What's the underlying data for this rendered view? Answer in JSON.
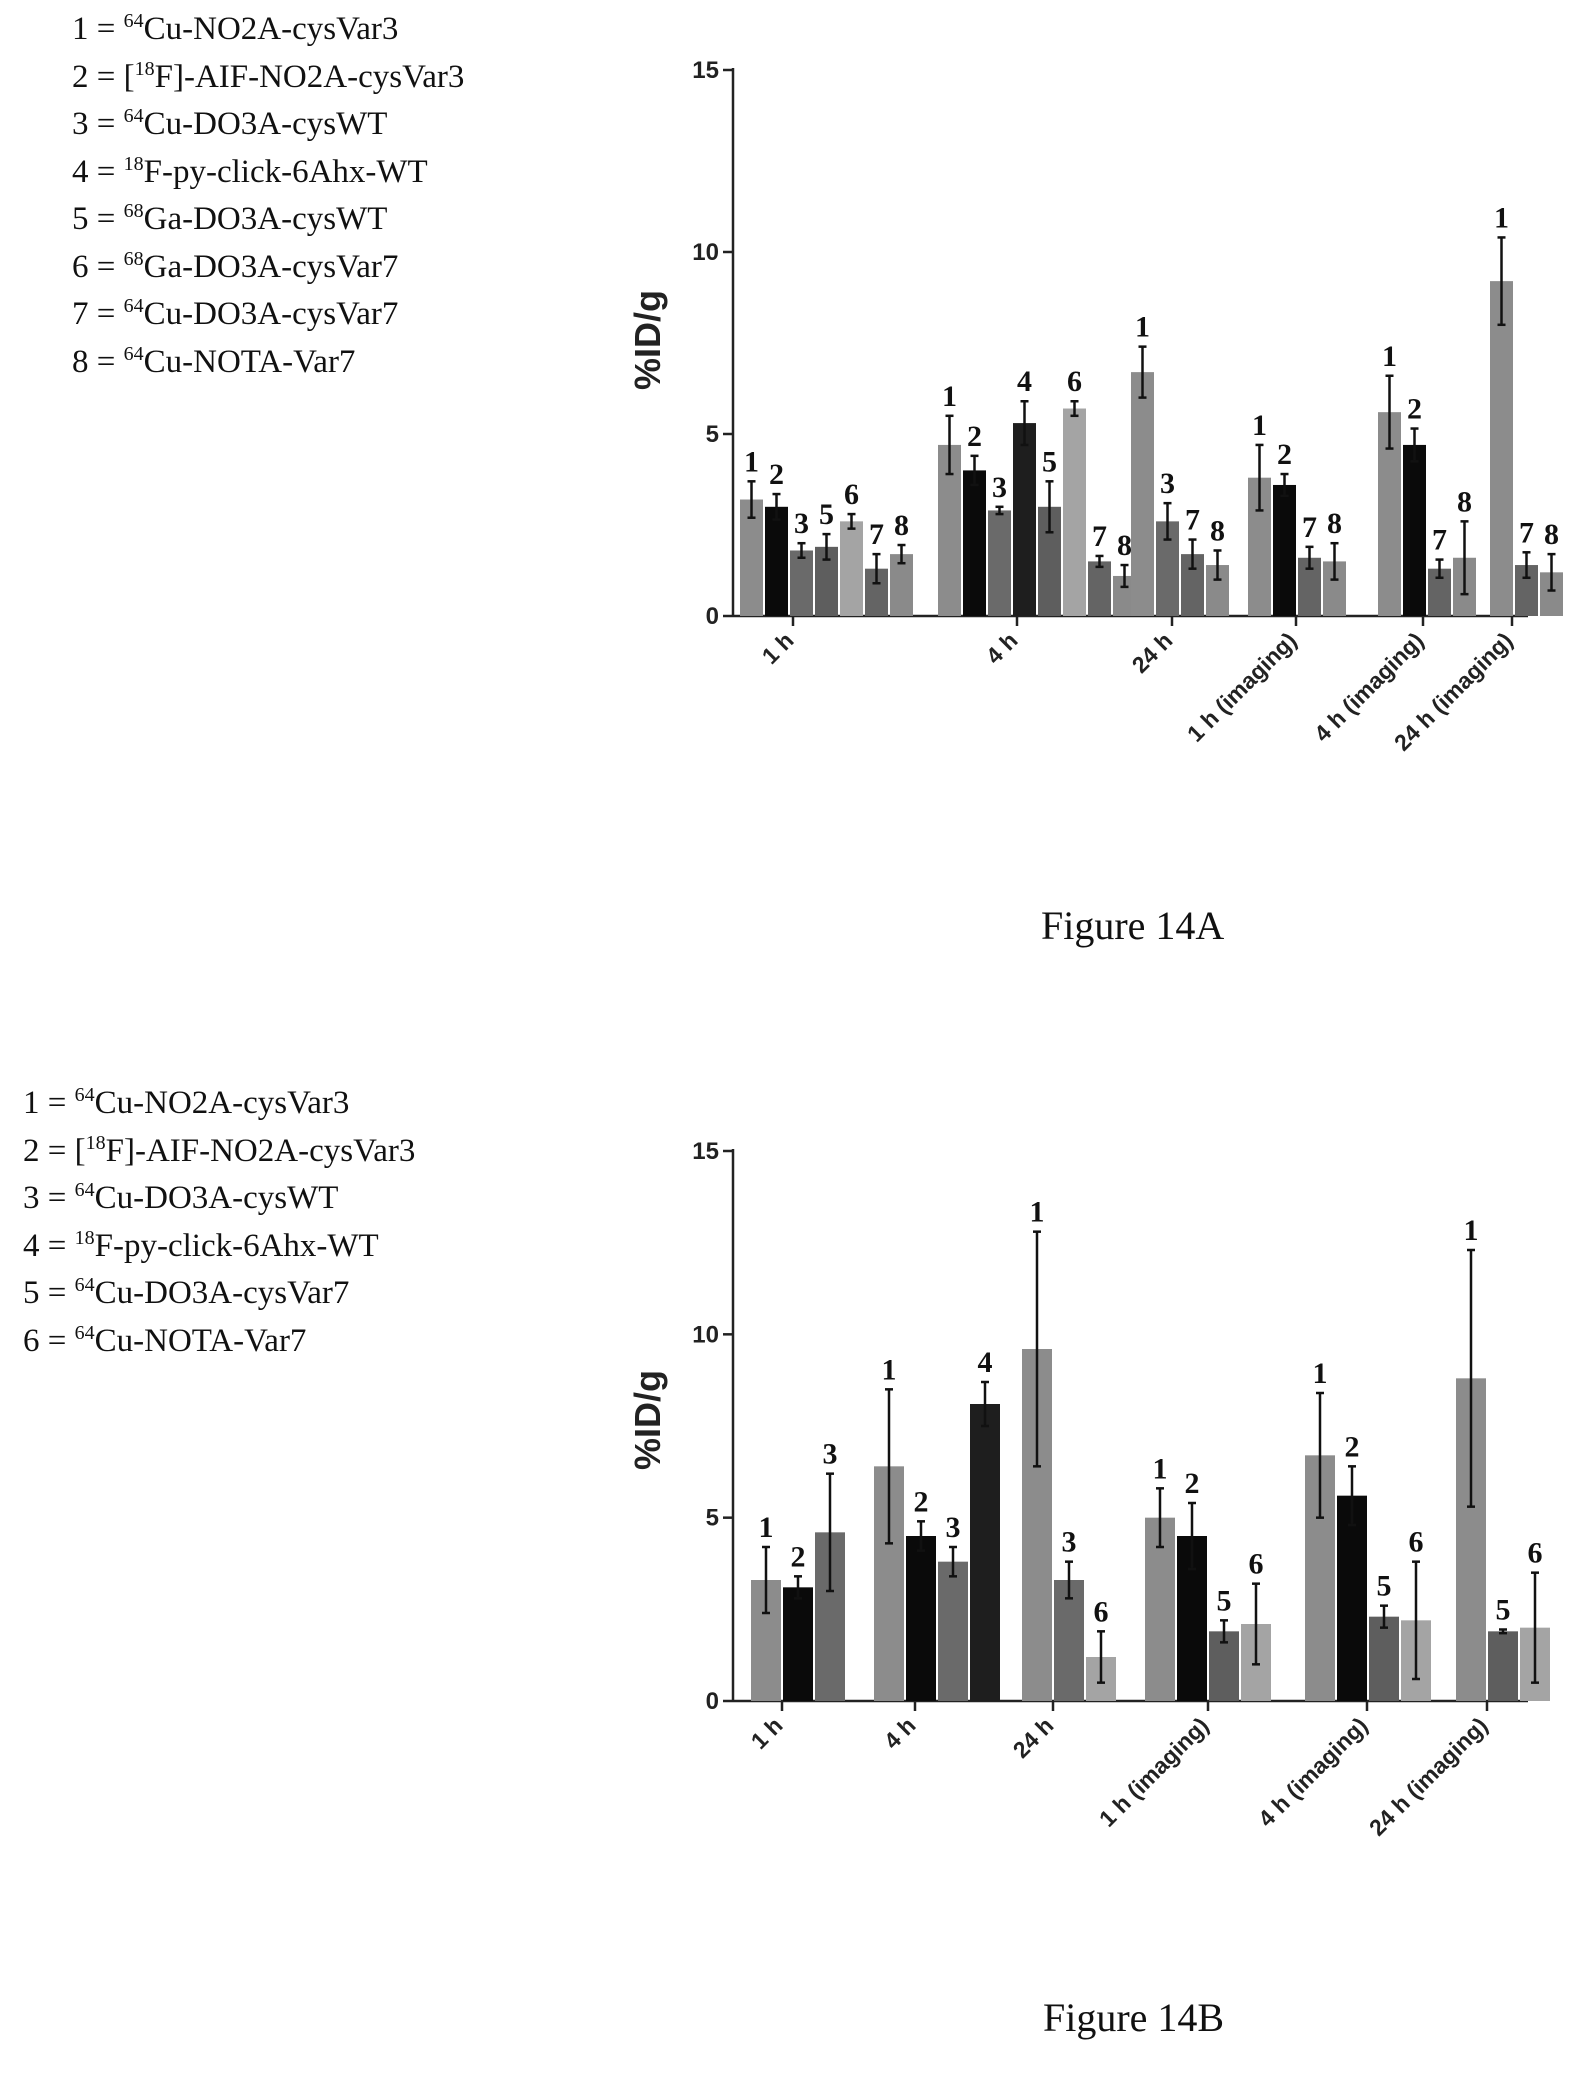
{
  "figures": [
    {
      "caption": "Figure 14A",
      "legend": [
        {
          "num": "1",
          "sup": "64",
          "text": "Cu-NO2A-cysVar3"
        },
        {
          "num": "2",
          "sup": "18",
          "text": "F]-AIF-NO2A-cysVar3",
          "bracket": "["
        },
        {
          "num": "3",
          "sup": "64",
          "text": "Cu-DO3A-cysWT"
        },
        {
          "num": "4",
          "sup": "18",
          "text": "F-py-click-6Ahx-WT"
        },
        {
          "num": "5",
          "sup": "68",
          "text": "Ga-DO3A-cysWT"
        },
        {
          "num": "6",
          "sup": "68",
          "text": "Ga-DO3A-cysVar7"
        },
        {
          "num": "7",
          "sup": "64",
          "text": "Cu-DO3A-cysVar7"
        },
        {
          "num": "8",
          "sup": "64",
          "text": "Cu-NOTA-Var7"
        }
      ]
    },
    {
      "caption": "Figure 14B",
      "legend": [
        {
          "num": "1",
          "sup": "64",
          "text": "Cu-NO2A-cysVar3"
        },
        {
          "num": "2",
          "sup": "18",
          "text": "F]-AIF-NO2A-cysVar3",
          "bracket": "["
        },
        {
          "num": "3",
          "sup": "64",
          "text": "Cu-DO3A-cysWT"
        },
        {
          "num": "4",
          "sup": "18",
          "text": "F-py-click-6Ahx-WT"
        },
        {
          "num": "5",
          "sup": "64",
          "text": "Cu-DO3A-cysVar7"
        },
        {
          "num": "6",
          "sup": "64",
          "text": "Cu-NOTA-Var7"
        }
      ]
    }
  ],
  "series_colors": {
    "1": "#8c8c8c",
    "2": "#0a0a0a",
    "3": "#6a6a6a",
    "4": "#1e1e1e",
    "5": "#5e5e5e",
    "6": "#a4a4a4",
    "7": "#646464",
    "8": "#8a8a8a"
  },
  "chart_data": [
    {
      "type": "bar",
      "ylabel": "%ID/g",
      "ylim": [
        0,
        15
      ],
      "yticks": [
        "0",
        "5",
        "10",
        "15"
      ],
      "categories": [
        "1 h",
        "4 h",
        "24 h",
        "1 h (imaging)",
        "4 h (imaging)",
        "24 h (imaging)"
      ],
      "groups": [
        {
          "category": "1 h",
          "bars": [
            {
              "label": "1",
              "value": 3.2,
              "err": 0.5
            },
            {
              "label": "2",
              "value": 3.0,
              "err": 0.35
            },
            {
              "label": "3",
              "value": 1.8,
              "err": 0.2
            },
            {
              "label": "5",
              "value": 1.9,
              "err": 0.35
            },
            {
              "label": "6",
              "value": 2.6,
              "err": 0.2
            },
            {
              "label": "7",
              "value": 1.3,
              "err": 0.4
            },
            {
              "label": "8",
              "value": 1.7,
              "err": 0.25
            }
          ]
        },
        {
          "category": "4 h",
          "bars": [
            {
              "label": "1",
              "value": 4.7,
              "err": 0.8
            },
            {
              "label": "2",
              "value": 4.0,
              "err": 0.4
            },
            {
              "label": "3",
              "value": 2.9,
              "err": 0.1
            },
            {
              "label": "4",
              "value": 5.3,
              "err": 0.6
            },
            {
              "label": "5",
              "value": 3.0,
              "err": 0.7
            },
            {
              "label": "6",
              "value": 5.7,
              "err": 0.2
            },
            {
              "label": "7",
              "value": 1.5,
              "err": 0.15
            },
            {
              "label": "8",
              "value": 1.1,
              "err": 0.3
            }
          ]
        },
        {
          "category": "24 h",
          "bars": [
            {
              "label": "1",
              "value": 6.7,
              "err": 0.7
            },
            {
              "label": "3",
              "value": 2.6,
              "err": 0.5
            },
            {
              "label": "7",
              "value": 1.7,
              "err": 0.4
            },
            {
              "label": "8",
              "value": 1.4,
              "err": 0.4
            }
          ]
        },
        {
          "category": "1 h (imaging)",
          "bars": [
            {
              "label": "1",
              "value": 3.8,
              "err": 0.9
            },
            {
              "label": "2",
              "value": 3.6,
              "err": 0.3
            },
            {
              "label": "7",
              "value": 1.6,
              "err": 0.3
            },
            {
              "label": "8",
              "value": 1.5,
              "err": 0.5
            }
          ]
        },
        {
          "category": "4 h (imaging)",
          "bars": [
            {
              "label": "1",
              "value": 5.6,
              "err": 1.0
            },
            {
              "label": "2",
              "value": 4.7,
              "err": 0.45
            },
            {
              "label": "7",
              "value": 1.3,
              "err": 0.25
            },
            {
              "label": "8",
              "value": 1.6,
              "err": 1.0
            }
          ]
        },
        {
          "category": "24 h (imaging)",
          "bars": [
            {
              "label": "1",
              "value": 9.2,
              "err": 1.2
            },
            {
              "label": "7",
              "value": 1.4,
              "err": 0.35
            },
            {
              "label": "8",
              "value": 1.2,
              "err": 0.5
            }
          ]
        }
      ]
    },
    {
      "type": "bar",
      "ylabel": "%ID/g",
      "ylim": [
        0,
        15
      ],
      "yticks": [
        "0",
        "5",
        "10",
        "15"
      ],
      "categories": [
        "1 h",
        "4 h",
        "24 h",
        "1 h (imaging)",
        "4 h (imaging)",
        "24 h (imaging)"
      ],
      "groups": [
        {
          "category": "1 h",
          "bars": [
            {
              "label": "1",
              "value": 3.3,
              "err": 0.9
            },
            {
              "label": "2",
              "value": 3.1,
              "err": 0.3
            },
            {
              "label": "3",
              "value": 4.6,
              "err": 1.6
            }
          ]
        },
        {
          "category": "4 h",
          "bars": [
            {
              "label": "1",
              "value": 6.4,
              "err": 2.1
            },
            {
              "label": "2",
              "value": 4.5,
              "err": 0.4
            },
            {
              "label": "3",
              "value": 3.8,
              "err": 0.4
            },
            {
              "label": "4",
              "value": 8.1,
              "err": 0.6
            }
          ]
        },
        {
          "category": "24 h",
          "bars": [
            {
              "label": "1",
              "value": 9.6,
              "err": 3.2
            },
            {
              "label": "3",
              "value": 3.3,
              "err": 0.5
            },
            {
              "label": "6",
              "value": 1.2,
              "err": 0.7
            }
          ]
        },
        {
          "category": "1 h (imaging)",
          "bars": [
            {
              "label": "1",
              "value": 5.0,
              "err": 0.8
            },
            {
              "label": "2",
              "value": 4.5,
              "err": 0.9
            },
            {
              "label": "5",
              "value": 1.9,
              "err": 0.3
            },
            {
              "label": "6",
              "value": 2.1,
              "err": 1.1
            }
          ]
        },
        {
          "category": "4 h (imaging)",
          "bars": [
            {
              "label": "1",
              "value": 6.7,
              "err": 1.7
            },
            {
              "label": "2",
              "value": 5.6,
              "err": 0.8
            },
            {
              "label": "5",
              "value": 2.3,
              "err": 0.3
            },
            {
              "label": "6",
              "value": 2.2,
              "err": 1.6
            }
          ]
        },
        {
          "category": "24 h (imaging)",
          "bars": [
            {
              "label": "1",
              "value": 8.8,
              "err": 3.5
            },
            {
              "label": "5",
              "value": 1.9,
              "err": 0.05
            },
            {
              "label": "6",
              "value": 2.0,
              "err": 1.5
            }
          ]
        }
      ]
    }
  ]
}
